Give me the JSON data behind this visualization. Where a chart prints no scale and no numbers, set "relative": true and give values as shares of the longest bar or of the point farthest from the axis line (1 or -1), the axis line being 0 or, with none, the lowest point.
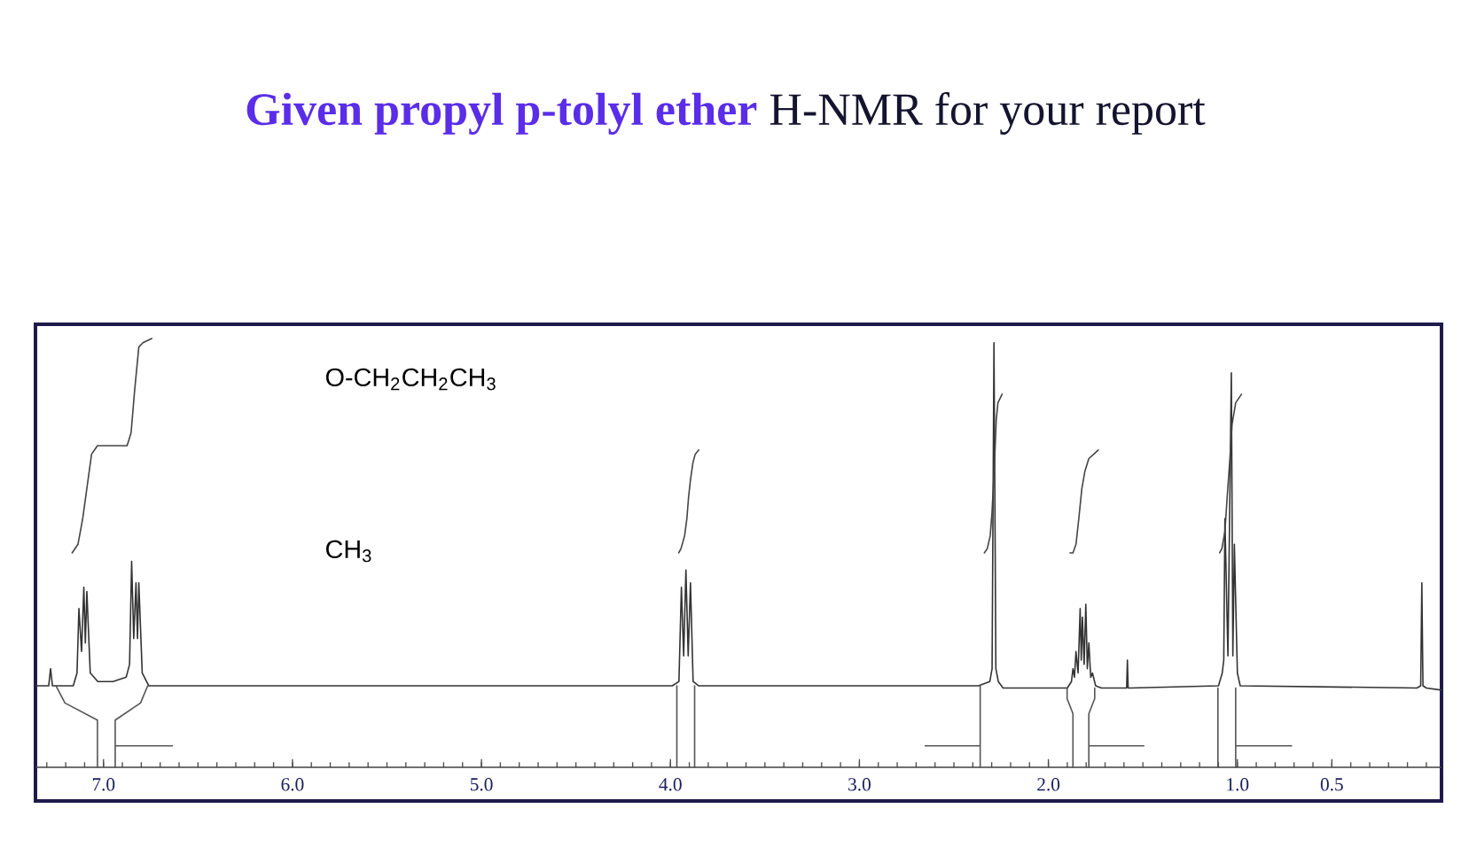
{
  "chart_data": {
    "type": "line",
    "title": "**Given propyl p-tolyl ether** H-NMR for your report",
    "relative": true,
    "xlim": [
      7.36,
      -0.08
    ],
    "xticks": [
      {
        "value": 7,
        "label": "7.0"
      },
      {
        "value": 6,
        "label": "6.0"
      },
      {
        "value": 5,
        "label": "5.0"
      },
      {
        "value": 4,
        "label": "4.0"
      },
      {
        "value": 3,
        "label": "3.0"
      },
      {
        "value": 2,
        "label": "2.0"
      },
      {
        "value": 1,
        "label": "1.0"
      },
      {
        "value": 0.5,
        "label": "0.5"
      }
    ],
    "series": [
      {
        "color": "#333333",
        "x": [
          7.36,
          7.29,
          7.28,
          7.27,
          7.16,
          7.14,
          7.13,
          7.116,
          7.104,
          7.096,
          7.088,
          7.07,
          7.03,
          6.95,
          6.88,
          6.862,
          6.851,
          6.84,
          6.828,
          6.82,
          6.813,
          6.795,
          6.76,
          3.99,
          3.955,
          3.942,
          3.93,
          3.918,
          3.906,
          3.894,
          3.88,
          3.85,
          2.37,
          2.31,
          2.298,
          2.288,
          2.278,
          2.265,
          2.24,
          1.9,
          1.878,
          1.87,
          1.862,
          1.854,
          1.843,
          1.832,
          1.826,
          1.82,
          1.811,
          1.802,
          1.794,
          1.786,
          1.776,
          1.767,
          1.75,
          1.72,
          1.6,
          1.586,
          1.582,
          1.578,
          1.565,
          1.1,
          1.08,
          1.072,
          1.066,
          1.05,
          1.032,
          1.024,
          1.016,
          1.0,
          0.985,
          0.05,
          0.03,
          0.024,
          0.018,
          0.0,
          -0.08
        ],
        "values": [
          0.19,
          0.19,
          0.23,
          0.19,
          0.19,
          0.22,
          0.37,
          0.27,
          0.42,
          0.29,
          0.41,
          0.22,
          0.2,
          0.2,
          0.21,
          0.24,
          0.48,
          0.3,
          0.43,
          0.3,
          0.43,
          0.22,
          0.19,
          0.19,
          0.2,
          0.42,
          0.26,
          0.46,
          0.26,
          0.43,
          0.2,
          0.19,
          0.19,
          0.2,
          0.23,
          0.99,
          0.23,
          0.2,
          0.185,
          0.185,
          0.2,
          0.23,
          0.21,
          0.27,
          0.22,
          0.37,
          0.25,
          0.35,
          0.24,
          0.38,
          0.23,
          0.29,
          0.21,
          0.22,
          0.19,
          0.185,
          0.185,
          0.185,
          0.25,
          0.185,
          0.185,
          0.19,
          0.22,
          0.25,
          0.58,
          0.26,
          0.92,
          0.26,
          0.52,
          0.22,
          0.19,
          0.185,
          0.19,
          0.43,
          0.19,
          0.185,
          0.18
        ]
      },
      {
        "color": "#444444",
        "x": [
          7.166,
          7.135,
          7.11,
          7.085,
          7.063,
          7.032,
          6.875,
          6.854,
          6.835,
          6.813,
          6.791,
          6.744,
          null,
          3.956,
          3.944,
          3.925,
          3.913,
          3.904,
          3.894,
          3.881,
          3.869,
          3.85,
          null,
          2.339,
          2.323,
          2.308,
          2.299,
          2.286,
          2.276,
          2.267,
          2.245,
          null,
          1.886,
          1.87,
          1.854,
          1.839,
          1.823,
          1.807,
          1.786,
          1.76,
          1.736,
          null,
          1.094,
          1.082,
          1.066,
          1.054,
          1.041,
          1.028,
          1.009,
          0.978
        ],
        "values": [
          0.5,
          0.52,
          0.58,
          0.66,
          0.73,
          0.75,
          0.75,
          0.78,
          0.88,
          0.98,
          0.99,
          1.0,
          null,
          0.5,
          0.51,
          0.54,
          0.58,
          0.63,
          0.67,
          0.71,
          0.73,
          0.74,
          null,
          0.5,
          0.51,
          0.54,
          0.59,
          0.7,
          0.81,
          0.85,
          0.87,
          null,
          0.5,
          0.5,
          0.52,
          0.58,
          0.65,
          0.69,
          0.72,
          0.73,
          0.74,
          null,
          0.5,
          0.51,
          0.55,
          0.63,
          0.71,
          0.8,
          0.85,
          0.87
        ]
      },
      {
        "color": "#555555",
        "x": [
          7.251,
          7.204,
          7.032,
          7.032,
          null,
          6.766,
          6.804,
          6.938,
          6.938,
          null,
          6.938,
          6.635,
          null,
          3.966,
          3.966,
          null,
          3.872,
          3.872,
          null,
          2.652,
          2.361,
          null,
          2.361,
          2.361,
          null,
          1.901,
          1.901,
          1.87,
          1.87,
          null,
          1.755,
          1.755,
          1.786,
          1.786,
          null,
          1.786,
          1.495,
          null,
          1.103,
          1.103,
          null,
          1.009,
          1.009,
          null,
          1.009,
          0.713
        ],
        "values": [
          0.19,
          0.15,
          0.11,
          0,
          null,
          0.19,
          0.15,
          0.11,
          0,
          null,
          0.05,
          0.05,
          null,
          0.19,
          0,
          null,
          0.19,
          0,
          null,
          0.05,
          0.05,
          null,
          0.19,
          0,
          null,
          0.185,
          0.16,
          0.125,
          0,
          null,
          0.185,
          0.16,
          0.125,
          0,
          null,
          0.05,
          0.05,
          null,
          0.185,
          0,
          null,
          0.185,
          0,
          null,
          0.05,
          0.05
        ]
      }
    ],
    "annotations": [
      "O-CH$_{2}$CH$_{2}$CH$_{3}$",
      "CH$_{3}$"
    ]
  }
}
